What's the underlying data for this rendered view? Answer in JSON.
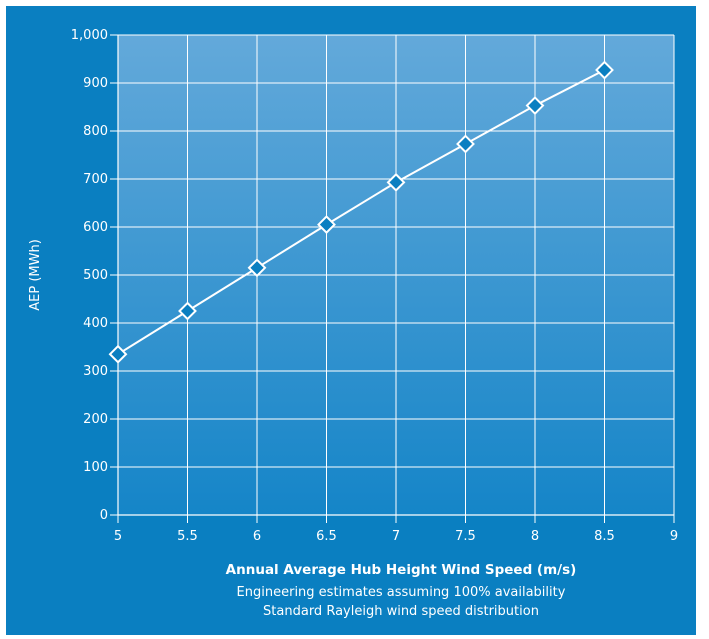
{
  "chart_data": {
    "type": "line",
    "title": "",
    "xlabel": "Annual Average Hub Height Wind Speed (m/s)",
    "ylabel": "AEP (MWh)",
    "notes": [
      "Engineering estimates assuming 100% availability",
      "Standard Rayleigh wind speed distribution"
    ],
    "xlim": [
      5,
      9
    ],
    "ylim": [
      0,
      1000
    ],
    "x_ticks": [
      5,
      5.5,
      6,
      6.5,
      7,
      7.5,
      8,
      8.5,
      9
    ],
    "x_tick_labels": [
      "5",
      "5.5",
      "6",
      "6.5",
      "7",
      "7.5",
      "8",
      "8.5",
      "9"
    ],
    "y_ticks": [
      0,
      100,
      200,
      300,
      400,
      500,
      600,
      700,
      800,
      900,
      1000
    ],
    "y_tick_labels": [
      "0",
      "100",
      "200",
      "300",
      "400",
      "500",
      "600",
      "700",
      "800",
      "900",
      "1,000"
    ],
    "grid": true,
    "legend": "none",
    "series": [
      {
        "x": [
          5,
          5.5,
          6,
          6.5,
          7,
          7.5,
          8,
          8.5
        ],
        "values": [
          335,
          425,
          515,
          605,
          693,
          773,
          853,
          927
        ],
        "marker": "diamond",
        "color": "#ffffff"
      }
    ],
    "colors": {
      "background": "#0a7fc1",
      "plot_top": "#63a9da",
      "plot_bottom": "#1585c8",
      "grid": "#ffffff",
      "line": "#ffffff"
    }
  }
}
